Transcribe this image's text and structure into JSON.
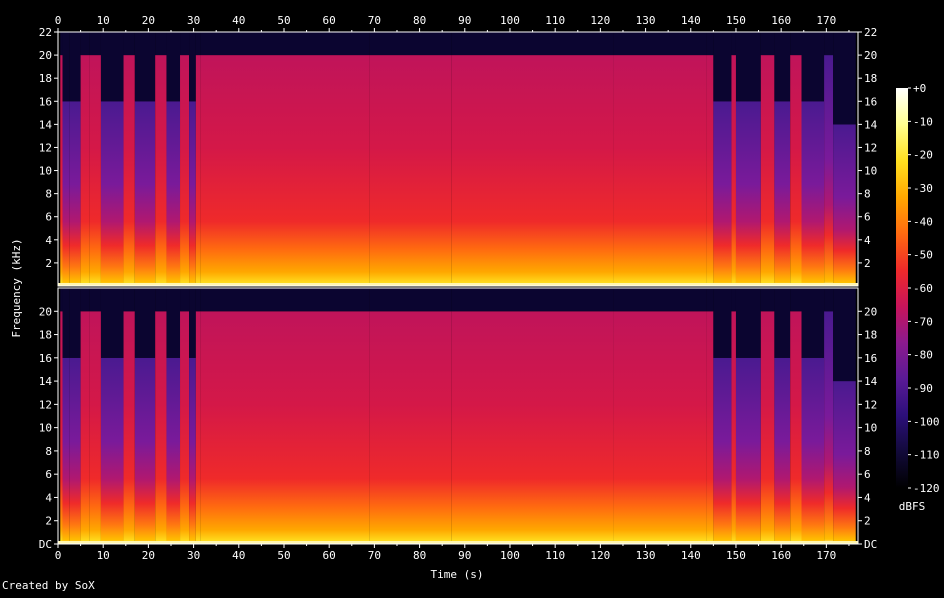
{
  "chart_data": {
    "type": "heatmap",
    "kind": "spectrogram",
    "xlabel": "Time (s)",
    "ylabel": "Frequency (kHz)",
    "xlim": [
      0,
      177
    ],
    "ylim": [
      0,
      22
    ],
    "x_ticks": [
      "0",
      "10",
      "20",
      "30",
      "40",
      "50",
      "60",
      "70",
      "80",
      "90",
      "100",
      "110",
      "120",
      "130",
      "140",
      "150",
      "160",
      "170"
    ],
    "x_minor_ticks": [
      "5",
      "15",
      "25",
      "35",
      "45",
      "55",
      "65",
      "75",
      "85",
      "95",
      "105",
      "115",
      "125",
      "135",
      "145",
      "155",
      "165",
      "175"
    ],
    "y_ticks_top": [
      "2",
      "4",
      "6",
      "8",
      "10",
      "12",
      "14",
      "16",
      "18",
      "20",
      "22"
    ],
    "y_ticks_bottom": [
      "DC",
      "2",
      "4",
      "6",
      "8",
      "10",
      "12",
      "14",
      "16",
      "18",
      "20"
    ],
    "channels": 2,
    "colorbar": {
      "label": "dBFS",
      "ticks": [
        "+0",
        "-10",
        "-20",
        "-30",
        "-40",
        "-50",
        "-60",
        "-70",
        "-80",
        "-90",
        "-100",
        "-110",
        "-120"
      ],
      "range": [
        -120,
        0
      ],
      "colors": [
        "#000000",
        "#120a3a",
        "#2c0f7a",
        "#5a1a96",
        "#8c1a8e",
        "#c8145a",
        "#ef2a2a",
        "#ff6a10",
        "#ffa800",
        "#ffe020",
        "#ffff90",
        "#ffffff"
      ]
    },
    "segments": [
      {
        "t0": 0.5,
        "t1": 1.0,
        "cutoff_khz": 20,
        "level_db": -60
      },
      {
        "t0": 1.0,
        "t1": 2.5,
        "cutoff_khz": 16,
        "level_db": -72
      },
      {
        "t0": 2.5,
        "t1": 5.0,
        "cutoff_khz": 16,
        "level_db": -80
      },
      {
        "t0": 5.0,
        "t1": 7.0,
        "cutoff_khz": 20,
        "level_db": -62
      },
      {
        "t0": 7.0,
        "t1": 9.5,
        "cutoff_khz": 20,
        "level_db": -58
      },
      {
        "t0": 9.5,
        "t1": 14.5,
        "cutoff_khz": 16,
        "level_db": -82
      },
      {
        "t0": 14.5,
        "t1": 17.0,
        "cutoff_khz": 20,
        "level_db": -58
      },
      {
        "t0": 17.0,
        "t1": 21.5,
        "cutoff_khz": 16,
        "level_db": -80
      },
      {
        "t0": 21.5,
        "t1": 24.0,
        "cutoff_khz": 20,
        "level_db": -62
      },
      {
        "t0": 24.0,
        "t1": 27.0,
        "cutoff_khz": 16,
        "level_db": -80
      },
      {
        "t0": 27.0,
        "t1": 29.0,
        "cutoff_khz": 20,
        "level_db": -66
      },
      {
        "t0": 29.0,
        "t1": 30.5,
        "cutoff_khz": 16,
        "level_db": -84
      },
      {
        "t0": 30.5,
        "t1": 31.5,
        "cutoff_khz": 20,
        "level_db": -60
      },
      {
        "t0": 31.5,
        "t1": 69.0,
        "cutoff_khz": 20,
        "level_db": -52
      },
      {
        "t0": 69.0,
        "t1": 87.0,
        "cutoff_khz": 20,
        "level_db": -50
      },
      {
        "t0": 87.0,
        "t1": 123.0,
        "cutoff_khz": 20,
        "level_db": -50
      },
      {
        "t0": 123.0,
        "t1": 143.5,
        "cutoff_khz": 20,
        "level_db": -52
      },
      {
        "t0": 143.5,
        "t1": 145.0,
        "cutoff_khz": 20,
        "level_db": -66
      },
      {
        "t0": 145.0,
        "t1": 149.0,
        "cutoff_khz": 16,
        "level_db": -80
      },
      {
        "t0": 149.0,
        "t1": 150.0,
        "cutoff_khz": 20,
        "level_db": -62
      },
      {
        "t0": 150.0,
        "t1": 155.5,
        "cutoff_khz": 16,
        "level_db": -84
      },
      {
        "t0": 155.5,
        "t1": 158.5,
        "cutoff_khz": 20,
        "level_db": -58
      },
      {
        "t0": 158.5,
        "t1": 162.0,
        "cutoff_khz": 16,
        "level_db": -80
      },
      {
        "t0": 162.0,
        "t1": 164.5,
        "cutoff_khz": 20,
        "level_db": -60
      },
      {
        "t0": 164.5,
        "t1": 169.5,
        "cutoff_khz": 16,
        "level_db": -84
      },
      {
        "t0": 169.5,
        "t1": 171.5,
        "cutoff_khz": 20,
        "level_db": -70
      },
      {
        "t0": 171.5,
        "t1": 176.5,
        "cutoff_khz": 14,
        "level_db": -95
      }
    ]
  },
  "footer": {
    "credit": "Created by SoX"
  }
}
